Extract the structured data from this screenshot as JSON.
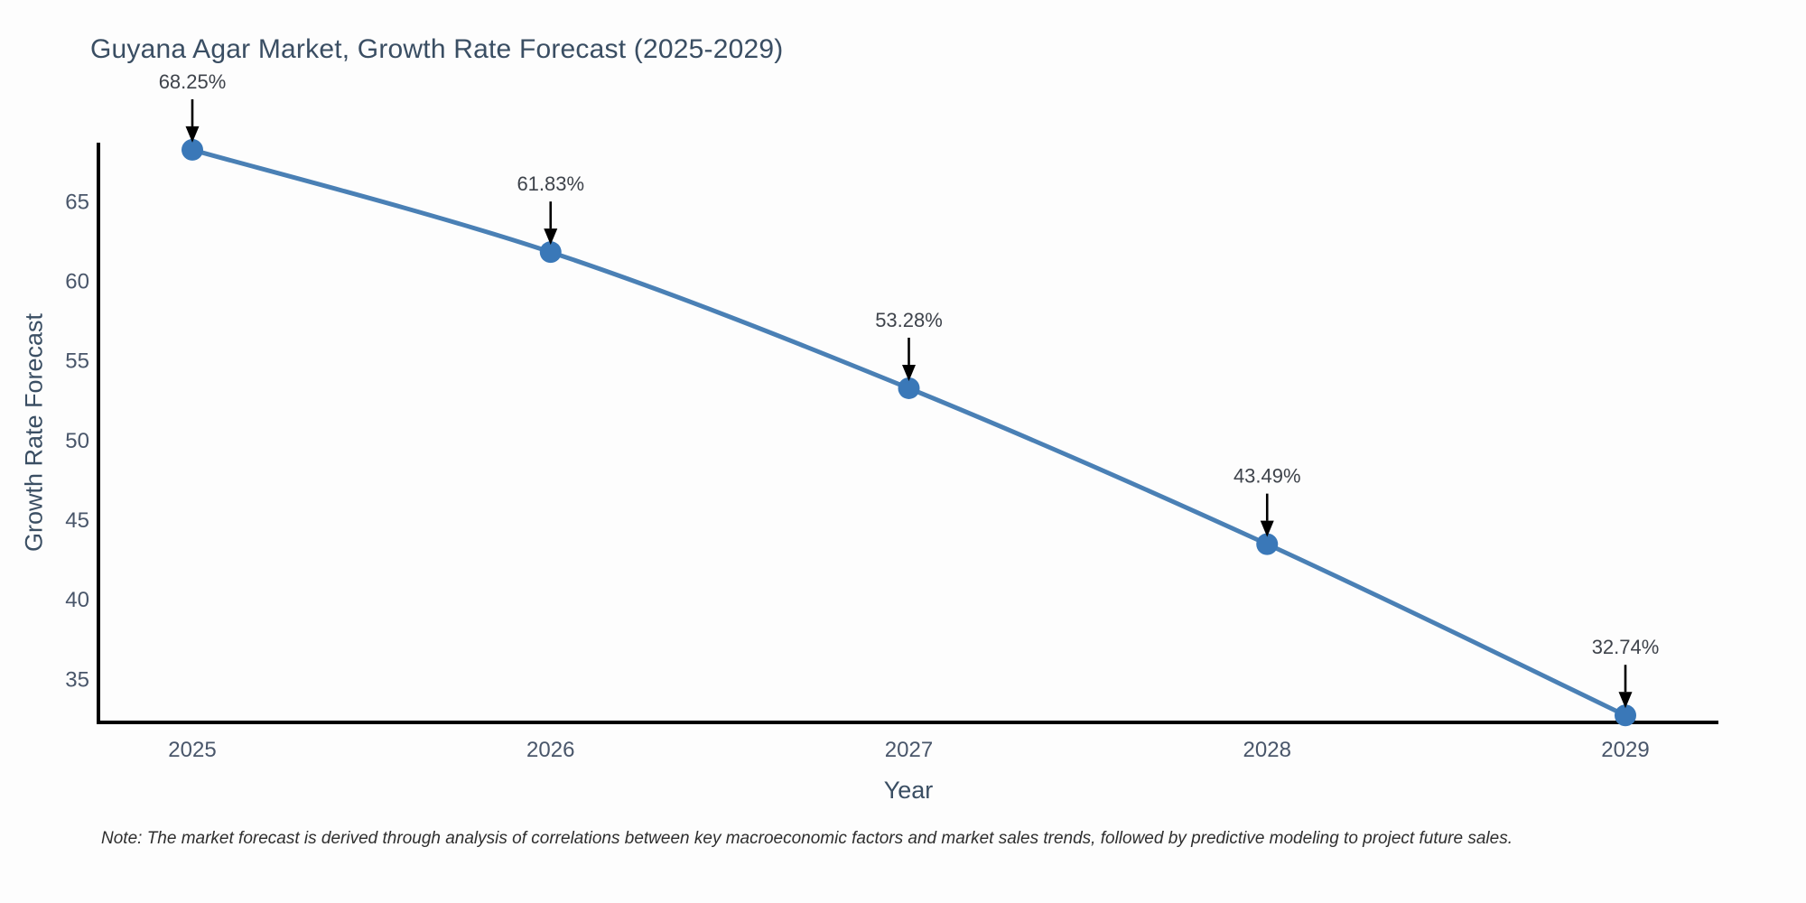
{
  "title": "Guyana Agar Market, Growth Rate Forecast (2025-2029)",
  "note": "Note: The market forecast is derived through analysis of correlations between key macroeconomic factors and market sales trends, followed by predictive modeling to project future sales.",
  "chart_data": {
    "type": "line",
    "title": "Guyana Agar Market, Growth Rate Forecast (2025-2029)",
    "x": [
      "2025",
      "2026",
      "2027",
      "2028",
      "2029"
    ],
    "series": [
      {
        "name": "Growth Rate Forecast",
        "values": [
          68.25,
          61.83,
          53.28,
          43.49,
          32.74
        ]
      }
    ],
    "point_labels": [
      "68.25%",
      "61.83%",
      "53.28%",
      "43.49%",
      "32.74%"
    ],
    "xlabel": "Year",
    "ylabel": "Growth Rate Forecast",
    "yticks": [
      35,
      40,
      45,
      50,
      55,
      60,
      65
    ],
    "ylim": [
      32.3,
      68.7
    ],
    "grid": false,
    "legend_position": "none",
    "line_color": "#4a80b5",
    "marker_color": "#3a78b8",
    "axis_color": "#000000",
    "annotation_arrow_color": "#000000"
  }
}
